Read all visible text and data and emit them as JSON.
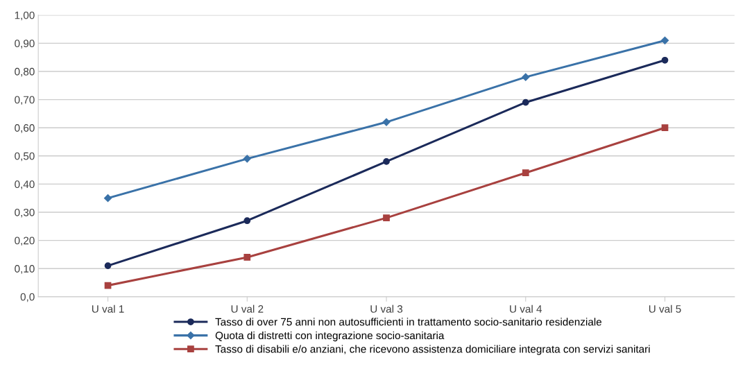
{
  "chart_data": {
    "type": "line",
    "categories": [
      "U val 1",
      "U val 2",
      "U val 3",
      "U val 4",
      "U val 5"
    ],
    "series": [
      {
        "name": "Tasso di over 75 anni non autosufficienti in trattamento socio-sanitario residenziale",
        "color": "#1b2a5a",
        "marker": "circle",
        "values": [
          0.11,
          0.27,
          0.48,
          0.69,
          0.84
        ]
      },
      {
        "name": "Quota di distretti con integrazione socio-sanitaria",
        "color": "#3a72a8",
        "marker": "diamond",
        "values": [
          0.35,
          0.49,
          0.62,
          0.78,
          0.91
        ]
      },
      {
        "name": "Tasso di disabili e/o anziani, che ricevono assistenza domiciliare integrata con servizi sanitari",
        "color": "#a8413f",
        "marker": "square",
        "values": [
          0.04,
          0.14,
          0.28,
          0.44,
          0.6
        ]
      }
    ],
    "ylim": [
      0,
      1
    ],
    "yticks": [
      {
        "value": 0,
        "label": "0,0"
      },
      {
        "value": 0.1,
        "label": "0,10"
      },
      {
        "value": 0.2,
        "label": "0,20"
      },
      {
        "value": 0.3,
        "label": "0,30"
      },
      {
        "value": 0.4,
        "label": "0,40"
      },
      {
        "value": 0.5,
        "label": "0,50"
      },
      {
        "value": 0.6,
        "label": "0,60"
      },
      {
        "value": 0.7,
        "label": "0,70"
      },
      {
        "value": 0.8,
        "label": "0,80"
      },
      {
        "value": 0.9,
        "label": "0,90"
      },
      {
        "value": 1,
        "label": "1,00"
      }
    ],
    "grid": "y",
    "legend": "bottom",
    "line_style": "solid"
  }
}
